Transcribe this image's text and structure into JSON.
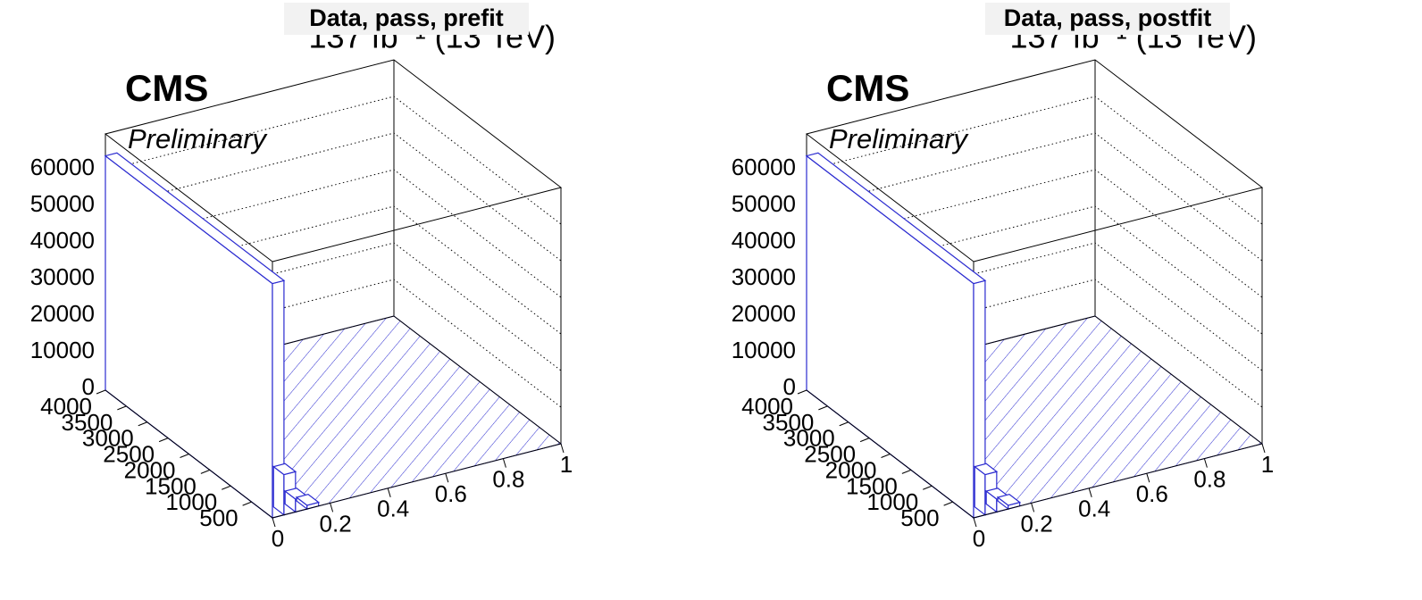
{
  "chart_data": [
    {
      "type": "lego3d",
      "title": "Data, pass, prefit",
      "lumi": "137 fb⁻¹ (13 TeV)",
      "label": "CMS",
      "sublabel": "Preliminary",
      "xlim": [
        0,
        1
      ],
      "xticks": [
        0,
        0.2,
        0.4,
        0.6,
        0.8,
        1
      ],
      "ylim": [
        0,
        4000
      ],
      "yticks": [
        500,
        1000,
        1500,
        2000,
        2500,
        3000,
        3500,
        4000
      ],
      "zlim": [
        0,
        70000
      ],
      "zticks": [
        0,
        10000,
        20000,
        30000,
        40000,
        50000,
        60000
      ],
      "color": "#2b2bd0",
      "grid": true,
      "bars": [
        {
          "x": [
            0,
            0.04
          ],
          "y": [
            0,
            4000
          ],
          "value": 64000
        },
        {
          "x": [
            0.04,
            0.08
          ],
          "y": [
            0,
            250
          ],
          "value": 11000
        },
        {
          "x": [
            0.08,
            0.12
          ],
          "y": [
            0,
            250
          ],
          "value": 3500
        },
        {
          "x": [
            0.12,
            0.16
          ],
          "y": [
            0,
            250
          ],
          "value": 1000
        }
      ]
    },
    {
      "type": "lego3d",
      "title": "Data, pass, postfit",
      "lumi": "137 fb⁻¹ (13 TeV)",
      "label": "CMS",
      "sublabel": "Preliminary",
      "xlim": [
        0,
        1
      ],
      "xticks": [
        0,
        0.2,
        0.4,
        0.6,
        0.8,
        1
      ],
      "ylim": [
        0,
        4000
      ],
      "yticks": [
        500,
        1000,
        1500,
        2000,
        2500,
        3000,
        3500,
        4000
      ],
      "zlim": [
        0,
        70000
      ],
      "zticks": [
        0,
        10000,
        20000,
        30000,
        40000,
        50000,
        60000
      ],
      "color": "#2b2bd0",
      "grid": true,
      "bars": [
        {
          "x": [
            0,
            0.04
          ],
          "y": [
            0,
            4000
          ],
          "value": 64000
        },
        {
          "x": [
            0.04,
            0.08
          ],
          "y": [
            0,
            250
          ],
          "value": 11000
        },
        {
          "x": [
            0.08,
            0.12
          ],
          "y": [
            0,
            250
          ],
          "value": 3500
        },
        {
          "x": [
            0.12,
            0.16
          ],
          "y": [
            0,
            250
          ],
          "value": 1000
        }
      ]
    }
  ]
}
